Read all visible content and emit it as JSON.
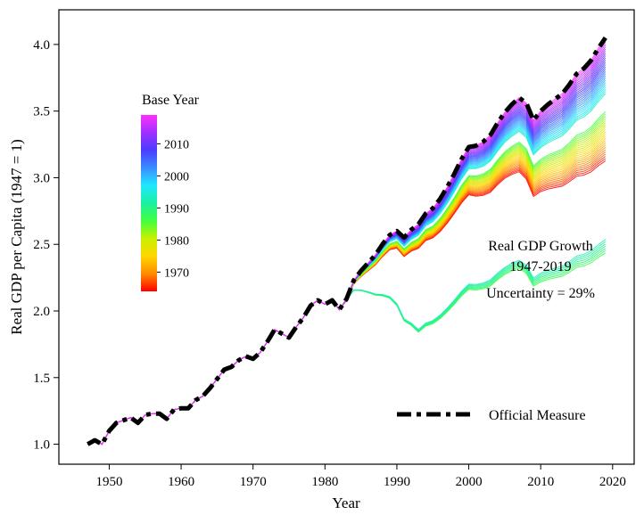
{
  "chart_data": {
    "type": "line",
    "xlabel": "Year",
    "ylabel": "Real GDP per Capita (1947 = 1)",
    "xlim": [
      1943,
      2023
    ],
    "ylim": [
      0.85,
      4.26
    ],
    "x_ticks": [
      1950,
      1960,
      1970,
      1980,
      1990,
      2000,
      2010,
      2020
    ],
    "y_ticks": [
      1.0,
      1.5,
      2.0,
      2.5,
      3.0,
      3.5,
      4.0
    ],
    "x_tick_labels": [
      "1950",
      "1960",
      "1970",
      "1980",
      "1990",
      "2000",
      "2010",
      "2020"
    ],
    "y_tick_labels": [
      "1.0",
      "1.5",
      "2.0",
      "2.5",
      "3.0",
      "3.5",
      "4.0"
    ],
    "grid": false,
    "annotation": {
      "line1": "Real GDP Growth",
      "line2": "1947-2019",
      "line3": "Uncertainty = 29%"
    },
    "colorbar": {
      "title": "Base Year",
      "tick_labels": [
        "2010",
        "2000",
        "1990",
        "1980",
        "1970"
      ],
      "tick_values": [
        2010,
        2000,
        1990,
        1980,
        1970
      ],
      "range": [
        1964,
        2019
      ],
      "colormap": [
        "#ff0000",
        "#ff8c00",
        "#ffd700",
        "#c8f000",
        "#40ff40",
        "#1af0a0",
        "#20e8ff",
        "#3a8cff",
        "#4a3cff",
        "#a030ff",
        "#ff30ff"
      ]
    },
    "legend": {
      "position": "bottom-right",
      "label": "Official Measure",
      "style": "dashed",
      "color": "#000000"
    },
    "official_series": {
      "name": "Official Measure",
      "x": [
        1947,
        1948,
        1949,
        1950,
        1951,
        1952,
        1953,
        1954,
        1955,
        1956,
        1957,
        1958,
        1959,
        1960,
        1961,
        1962,
        1963,
        1964,
        1965,
        1966,
        1967,
        1968,
        1969,
        1970,
        1971,
        1972,
        1973,
        1974,
        1975,
        1976,
        1977,
        1978,
        1979,
        1980,
        1981,
        1982,
        1983,
        1984,
        1985,
        1986,
        1987,
        1988,
        1989,
        1990,
        1991,
        1992,
        1993,
        1994,
        1995,
        1996,
        1997,
        1998,
        1999,
        2000,
        2001,
        2002,
        2003,
        2004,
        2005,
        2006,
        2007,
        2008,
        2009,
        2010,
        2011,
        2012,
        2013,
        2014,
        2015,
        2016,
        2017,
        2018,
        2019
      ],
      "y": [
        1.0,
        1.03,
        1.0,
        1.1,
        1.16,
        1.18,
        1.2,
        1.16,
        1.22,
        1.23,
        1.23,
        1.19,
        1.26,
        1.27,
        1.27,
        1.33,
        1.36,
        1.42,
        1.49,
        1.56,
        1.58,
        1.63,
        1.66,
        1.64,
        1.69,
        1.77,
        1.86,
        1.83,
        1.8,
        1.88,
        1.95,
        2.04,
        2.08,
        2.05,
        2.08,
        2.01,
        2.09,
        2.23,
        2.3,
        2.36,
        2.42,
        2.5,
        2.57,
        2.6,
        2.55,
        2.61,
        2.65,
        2.73,
        2.77,
        2.84,
        2.93,
        3.03,
        3.14,
        3.23,
        3.24,
        3.27,
        3.32,
        3.41,
        3.49,
        3.55,
        3.6,
        3.56,
        3.43,
        3.5,
        3.55,
        3.59,
        3.63,
        3.7,
        3.78,
        3.82,
        3.88,
        3.97,
        4.05
      ]
    }
  }
}
